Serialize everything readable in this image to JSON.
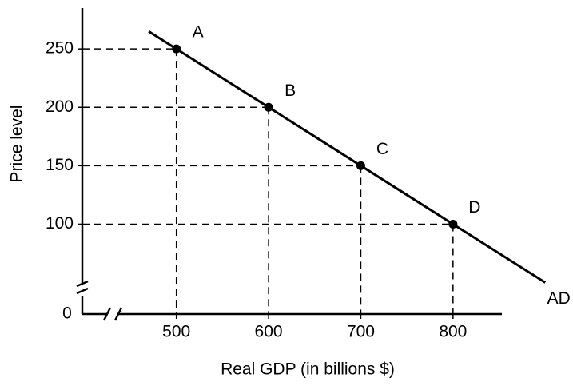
{
  "chart_data": {
    "type": "line",
    "x_label": "Real GDP (in billions $)",
    "y_label": "Price level",
    "origin_label": "0",
    "xlim": [
      398,
      853
    ],
    "ylim": [
      23,
      285
    ],
    "xticks": [
      500,
      600,
      700,
      800
    ],
    "yticks": [
      100,
      150,
      200,
      250
    ],
    "color": "#000000",
    "guides": true,
    "curve": {
      "name": "AD",
      "x": [
        470,
        900
      ],
      "values": [
        265,
        50
      ]
    },
    "points": {
      "labels": [
        "A",
        "B",
        "C",
        "D"
      ],
      "x": [
        500,
        600,
        700,
        800
      ],
      "values": [
        250,
        200,
        150,
        100
      ]
    }
  }
}
